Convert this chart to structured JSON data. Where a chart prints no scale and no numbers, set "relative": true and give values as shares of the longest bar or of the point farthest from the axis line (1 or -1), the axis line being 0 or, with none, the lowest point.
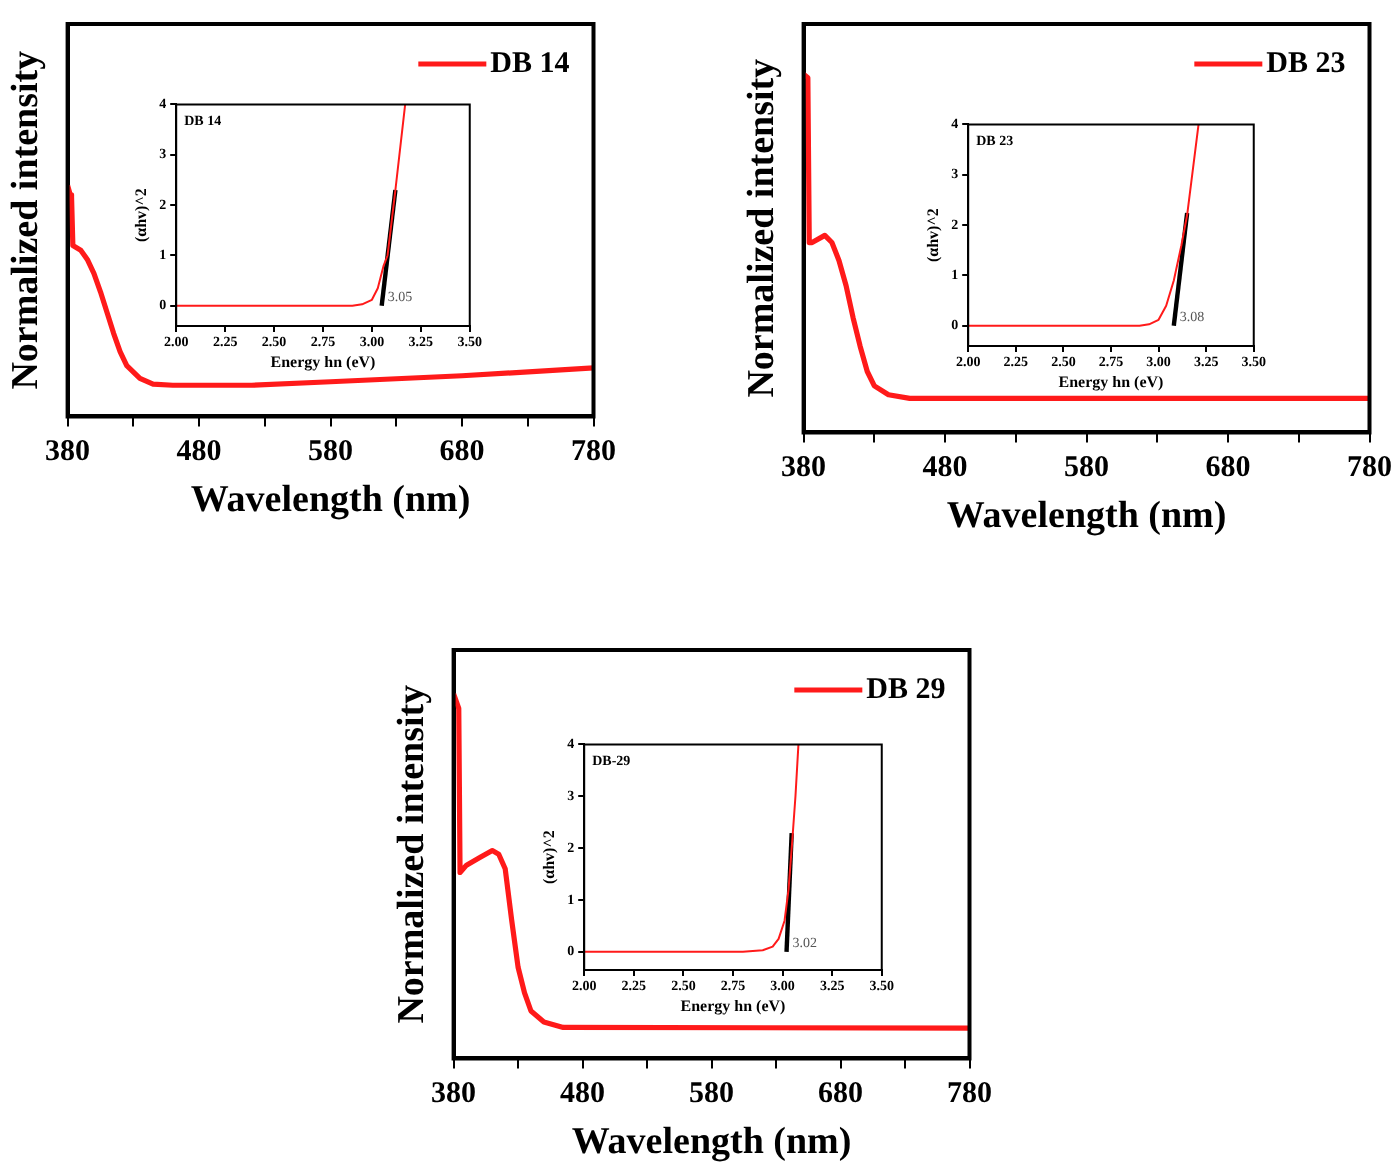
{
  "chart_data": [
    {
      "type": "line",
      "xlabel": "Wavelength (nm)",
      "ylabel": "Normalized intensity",
      "relative": true,
      "tick_labels": "x",
      "legend": "top right",
      "xlim": [
        380,
        780
      ],
      "xticks": [
        380,
        {
          "value": 430,
          "label": null
        },
        480,
        {
          "value": 530,
          "label": null
        },
        580,
        {
          "value": 630,
          "label": null
        },
        680,
        {
          "value": 730,
          "label": null
        },
        780
      ],
      "series": [
        {
          "name": "DB 14",
          "color": "#ff1a1a",
          "x": [
            380,
            382,
            383,
            384,
            390,
            395,
            400,
            405,
            410,
            415,
            420,
            425,
            435,
            445,
            460,
            520,
            580,
            680,
            780
          ],
          "values": [
            1,
            0.96,
            0.95,
            0.74,
            0.72,
            0.68,
            0.62,
            0.54,
            0.45,
            0.36,
            0.28,
            0.22,
            0.165,
            0.14,
            0.135,
            0.135,
            0.15,
            0.176,
            0.21
          ]
        }
      ]
    },
    {
      "type": "line",
      "xlabel": "Energy hn (eV)",
      "ylabel": "(αhv)^2",
      "xlim": [
        2,
        3.5
      ],
      "ylim": [
        -0.4,
        4
      ],
      "xticks": [
        {
          "value": 2,
          "label": "2.00"
        },
        {
          "value": 2.25,
          "label": "2.25"
        },
        {
          "value": 2.5,
          "label": "2.50"
        },
        {
          "value": 2.75,
          "label": "2.75"
        },
        {
          "value": 3,
          "label": "3.00"
        },
        {
          "value": 3.25,
          "label": "3.25"
        },
        {
          "value": 3.5,
          "label": "3.50"
        }
      ],
      "yticks": [
        0,
        1,
        2,
        3,
        4
      ],
      "annotations": [
        "DB 14",
        {
          "text": "3.05",
          "x": 3.05,
          "y": 0
        }
      ],
      "series": [
        {
          "color": "#ff1a1a",
          "x": [
            2,
            2.9,
            2.95,
            3.0,
            3.03,
            3.06,
            3.08,
            3.12,
            3.17
          ],
          "values": [
            0,
            0,
            0.03,
            0.12,
            0.35,
            0.8,
            1.0,
            2.3,
            4
          ]
        },
        {
          "color": "#000000",
          "x": [
            3.05,
            3.12
          ],
          "values": [
            0,
            2.3
          ]
        }
      ]
    },
    {
      "type": "line",
      "xlabel": "Wavelength (nm)",
      "ylabel": "Normalized intensity",
      "relative": true,
      "tick_labels": "x",
      "legend": "top right",
      "xlim": [
        380,
        780
      ],
      "xticks": [
        380,
        {
          "value": 430,
          "label": null
        },
        480,
        {
          "value": 530,
          "label": null
        },
        580,
        {
          "value": 630,
          "label": null
        },
        680,
        {
          "value": 730,
          "label": null
        },
        780
      ],
      "series": [
        {
          "name": "DB 23",
          "color": "#ff1a1a",
          "x": [
            380,
            383,
            384,
            386,
            395,
            400,
            405,
            410,
            415,
            420,
            425,
            430,
            440,
            455,
            780
          ],
          "values": [
            1,
            0.99,
            0.53,
            0.53,
            0.55,
            0.53,
            0.48,
            0.41,
            0.32,
            0.24,
            0.17,
            0.13,
            0.105,
            0.095,
            0.095
          ]
        }
      ]
    },
    {
      "type": "line",
      "xlabel": "Energy hn (eV)",
      "ylabel": "(αhv)^2",
      "xlim": [
        2,
        3.5
      ],
      "ylim": [
        -0.4,
        4
      ],
      "xticks": [
        {
          "value": 2,
          "label": "2.00"
        },
        {
          "value": 2.25,
          "label": "2.25"
        },
        {
          "value": 2.5,
          "label": "2.50"
        },
        {
          "value": 2.75,
          "label": "2.75"
        },
        {
          "value": 3,
          "label": "3.00"
        },
        {
          "value": 3.25,
          "label": "3.25"
        },
        {
          "value": 3.5,
          "label": "3.50"
        }
      ],
      "yticks": [
        0,
        1,
        2,
        3,
        4
      ],
      "annotations": [
        "DB 23",
        {
          "text": "3.08",
          "x": 3.08,
          "y": 0
        }
      ],
      "series": [
        {
          "color": "#ff1a1a",
          "x": [
            2,
            2.9,
            2.95,
            3.0,
            3.04,
            3.08,
            3.12,
            3.15,
            3.21
          ],
          "values": [
            0,
            0,
            0.03,
            0.12,
            0.4,
            0.9,
            1.6,
            2.2,
            4
          ]
        },
        {
          "color": "#000000",
          "x": [
            3.08,
            3.15
          ],
          "values": [
            0,
            2.24
          ]
        }
      ]
    },
    {
      "type": "line",
      "xlabel": "Wavelength (nm)",
      "ylabel": "Normalized intensity",
      "relative": true,
      "tick_labels": "x",
      "legend": "top right",
      "xlim": [
        380,
        780
      ],
      "xticks": [
        380,
        {
          "value": 430,
          "label": null
        },
        480,
        {
          "value": 530,
          "label": null
        },
        580,
        {
          "value": 630,
          "label": null
        },
        680,
        {
          "value": 730,
          "label": null
        },
        780
      ],
      "series": [
        {
          "name": "DB 29",
          "color": "#ff1a1a",
          "x": [
            380,
            382,
            384,
            385,
            390,
            400,
            410,
            415,
            420,
            425,
            430,
            435,
            440,
            450,
            465,
            780
          ],
          "values": [
            1,
            0.98,
            0.96,
            0.51,
            0.53,
            0.55,
            0.57,
            0.56,
            0.52,
            0.38,
            0.25,
            0.18,
            0.13,
            0.1,
            0.085,
            0.083
          ]
        }
      ]
    },
    {
      "type": "line",
      "xlabel": "Energy hn (eV)",
      "ylabel": "(αhv)^2",
      "xlim": [
        2,
        3.5
      ],
      "ylim": [
        -0.35,
        4
      ],
      "xticks": [
        {
          "value": 2,
          "label": "2.00"
        },
        {
          "value": 2.25,
          "label": "2.25"
        },
        {
          "value": 2.5,
          "label": "2.50"
        },
        {
          "value": 2.75,
          "label": "2.75"
        },
        {
          "value": 3,
          "label": "3.00"
        },
        {
          "value": 3.25,
          "label": "3.25"
        },
        {
          "value": 3.5,
          "label": "3.50"
        }
      ],
      "yticks": [
        0,
        1,
        2,
        3,
        4
      ],
      "annotations": [
        "DB-29",
        {
          "text": "3.02",
          "x": 3.02,
          "y": 0
        }
      ],
      "series": [
        {
          "color": "#ff1a1a",
          "x": [
            2,
            2.8,
            2.9,
            2.95,
            2.98,
            3.01,
            3.03,
            3.05,
            3.065,
            3.08
          ],
          "values": [
            0,
            0,
            0.03,
            0.1,
            0.25,
            0.6,
            1.2,
            2.2,
            3,
            4
          ]
        },
        {
          "color": "#000000",
          "x": [
            3.02,
            3.046
          ],
          "values": [
            0,
            2.29
          ]
        }
      ]
    }
  ]
}
